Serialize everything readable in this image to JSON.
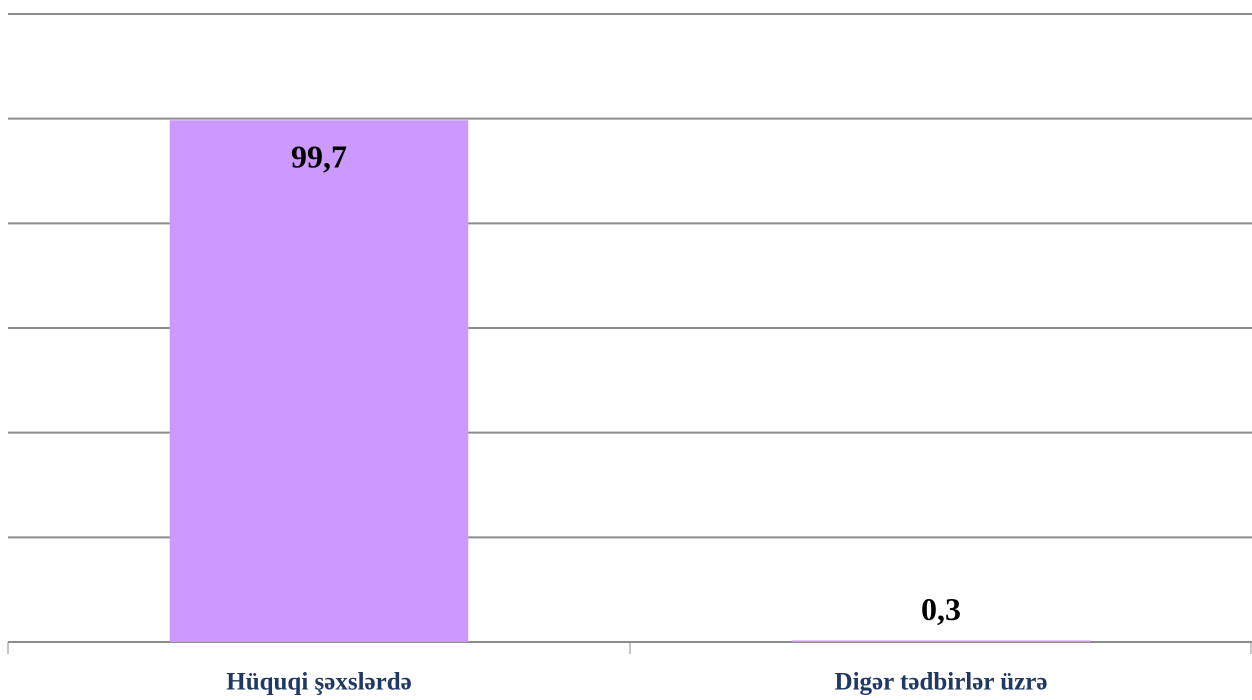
{
  "chart_data": {
    "type": "bar",
    "categories": [
      "Hüquqi şəxslərdə",
      "Digər tədbirlər üzrə"
    ],
    "values": [
      99.7,
      0.3
    ],
    "value_labels": [
      "99,7",
      "0,3"
    ],
    "color": "#cc99ff",
    "ylim": [
      0,
      120
    ],
    "yticks": [
      0,
      20,
      40,
      60,
      80,
      100,
      120
    ],
    "grid": true,
    "show_y_tick_labels": false
  }
}
